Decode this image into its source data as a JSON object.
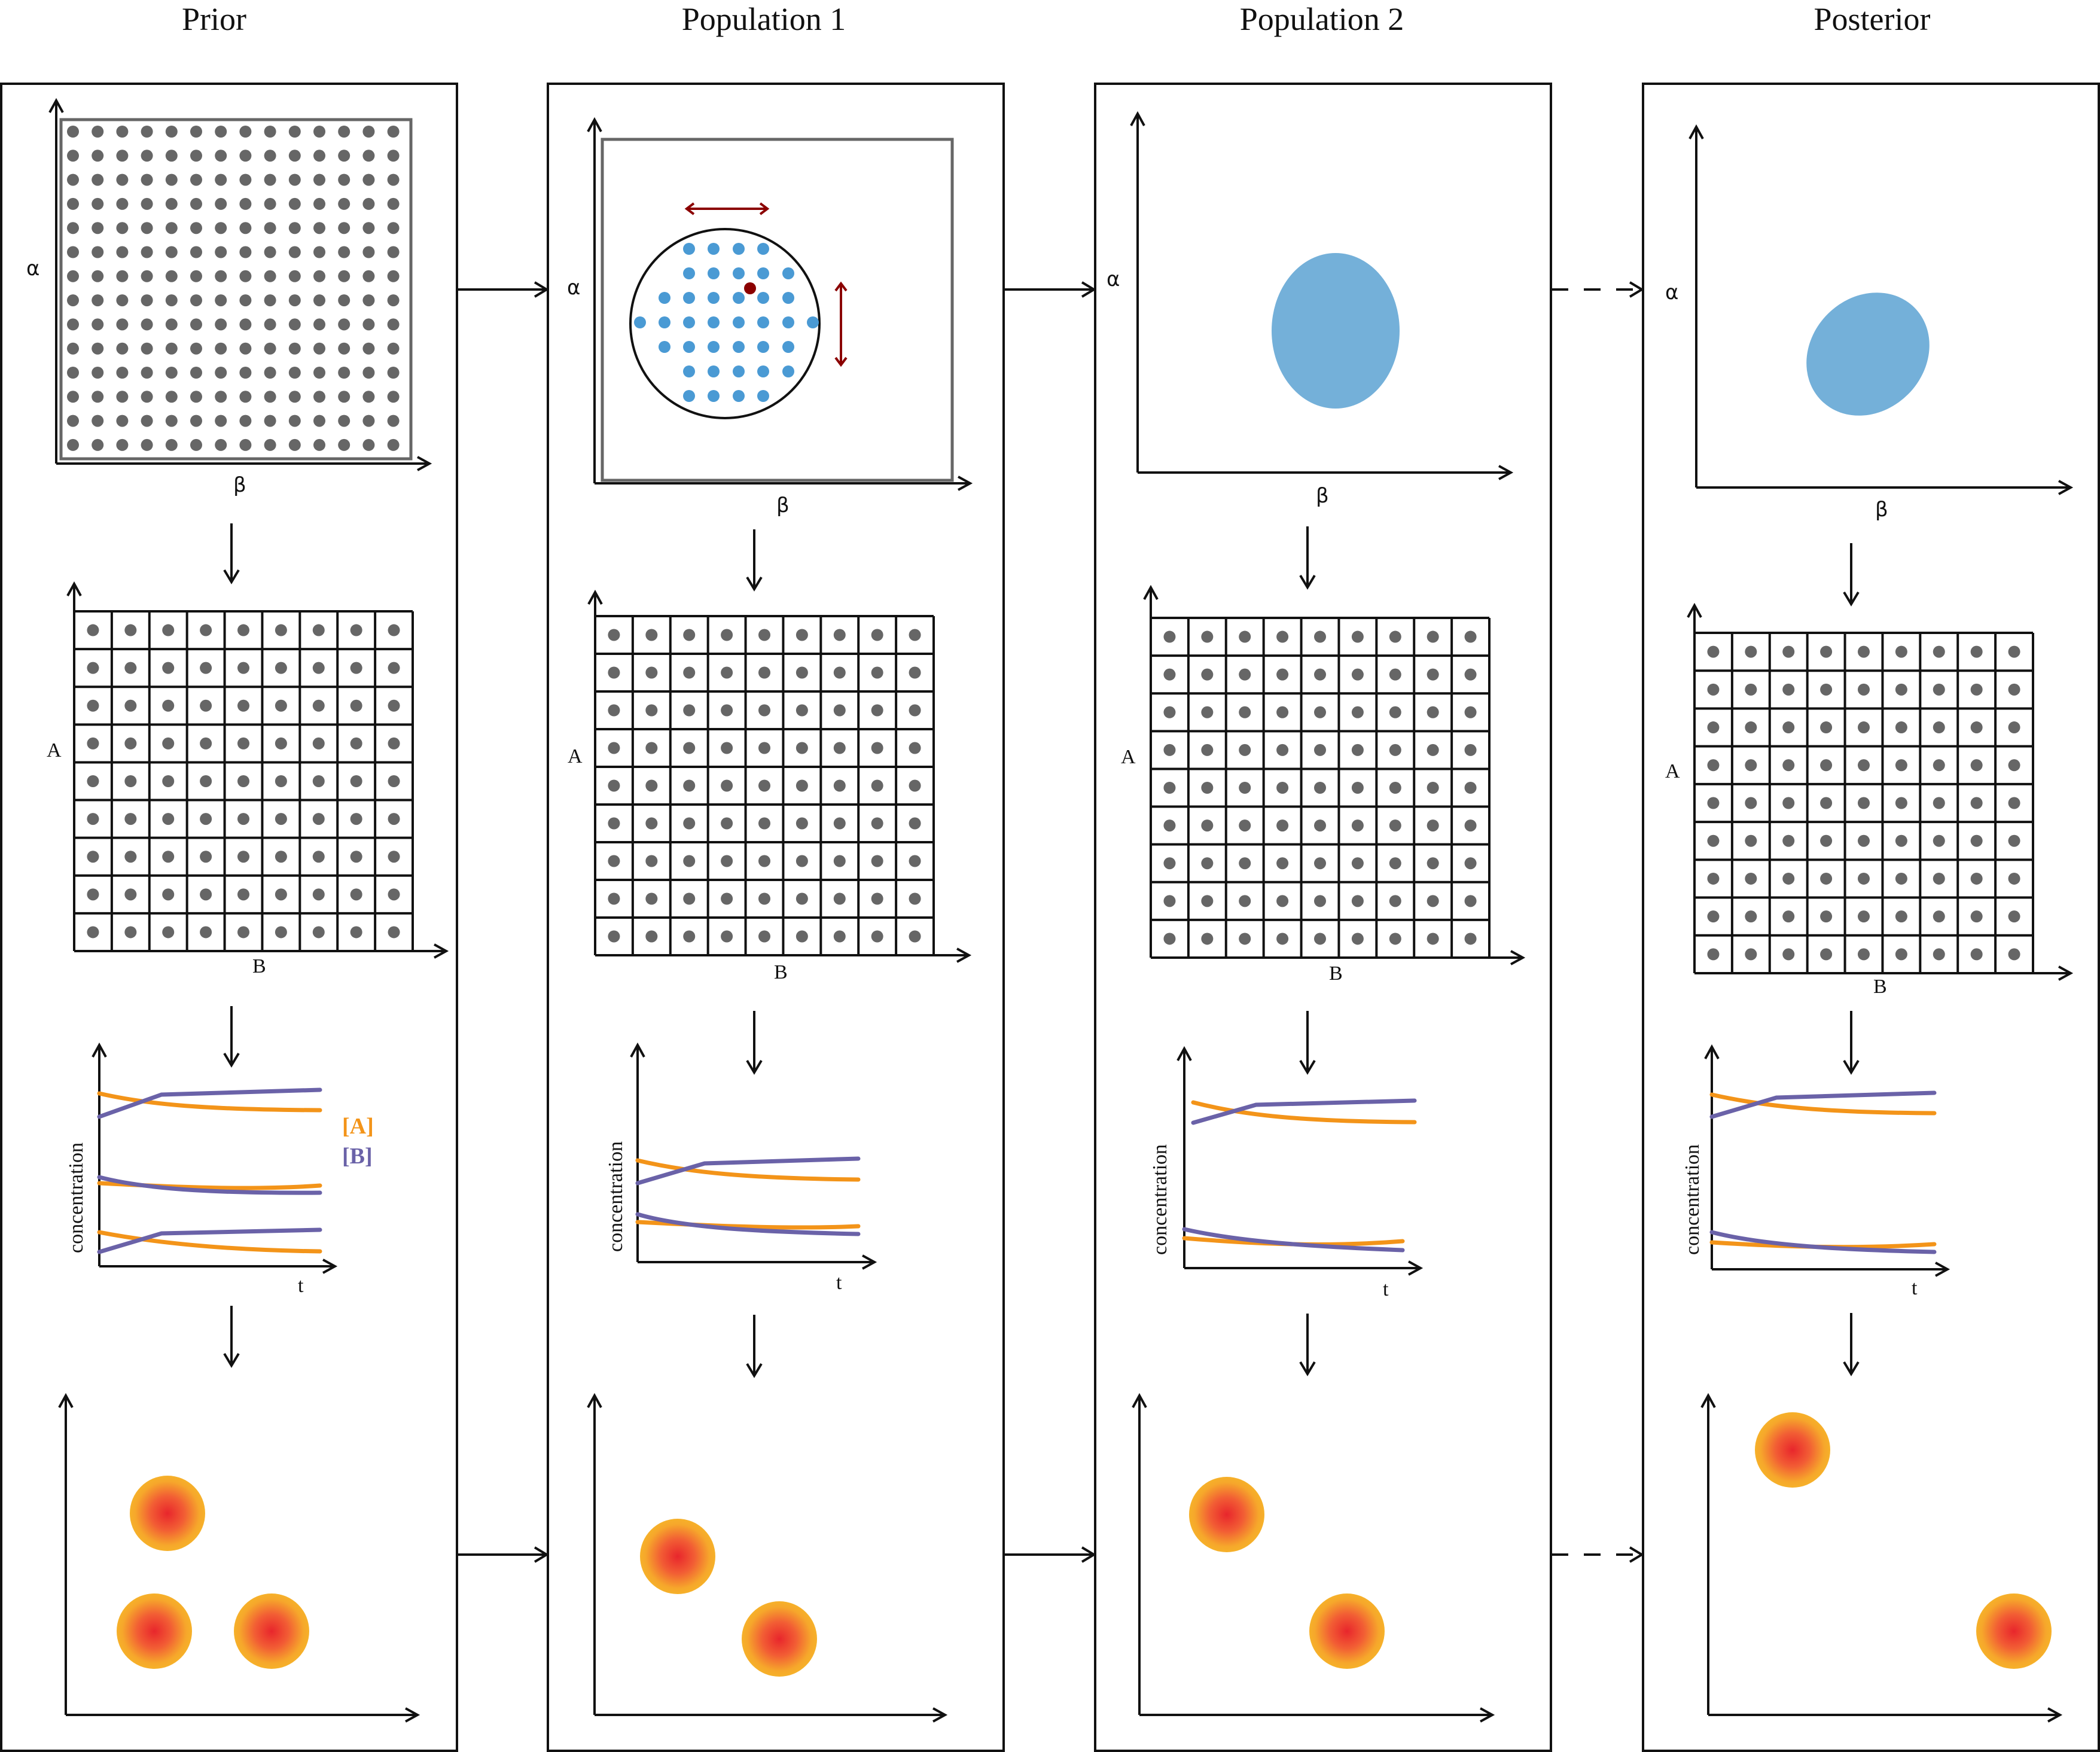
{
  "titles": {
    "prior": "Prior",
    "population1": "Population 1",
    "population2": "Population 2",
    "posterior": "Posterior"
  },
  "labels": {
    "alpha": "α",
    "beta": "β",
    "A": "A",
    "B": "B",
    "concentration": "concentration",
    "t": "t",
    "legend_A": "[A]",
    "legend_B": "[B]"
  },
  "colors": {
    "frame": "#111111",
    "dot": "#666666",
    "blue_dot": "#4a9ad4",
    "blob": "#74b0d9",
    "dark_red": "#8b0000",
    "orange": "#f39419",
    "purple": "#6a62a8",
    "cell_core": "#e8262c",
    "cell_mid": "#f25d34",
    "cell_edge": "#f6b12a"
  },
  "icons": {
    "flow": "arrow-right-icon",
    "flow_dashed": "dashed-arrow-right-icon",
    "step": "arrow-down-icon"
  }
}
